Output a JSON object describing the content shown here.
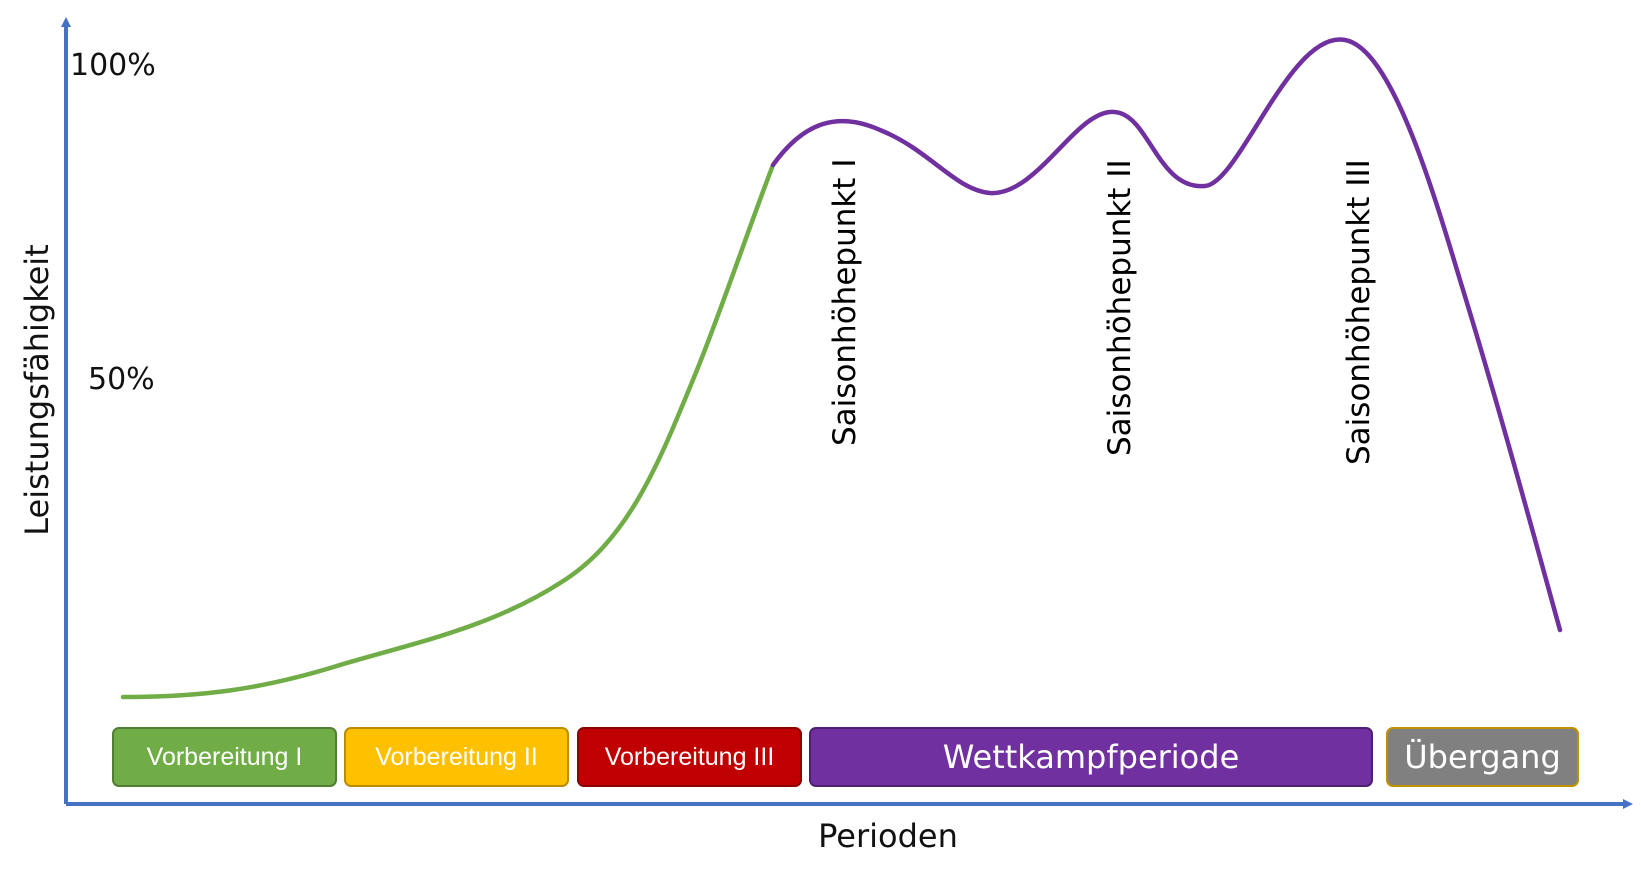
{
  "y_axis": {
    "title": "Leistungsfähigkeit",
    "ticks": [
      "100%",
      "50%"
    ]
  },
  "x_axis": {
    "title": "Perioden"
  },
  "peaks": [
    {
      "label": "Saisonhöhepunkt I"
    },
    {
      "label": "Saisonhöhepunkt II"
    },
    {
      "label": "Saisonhöhepunkt III"
    }
  ],
  "periods": [
    {
      "label": "Vorbereitung I",
      "color": "#70ad47"
    },
    {
      "label": "Vorbereitung II",
      "color": "#ffc000"
    },
    {
      "label": "Vorbereitung III",
      "color": "#c00000"
    },
    {
      "label": "Wettkampfperiode",
      "color": "#7030a0"
    },
    {
      "label": "Übergang",
      "color": "#808080"
    }
  ],
  "curve_colors": {
    "preparation": "#70ad47",
    "competition": "#7030a0",
    "axes": "#4472c4"
  }
}
